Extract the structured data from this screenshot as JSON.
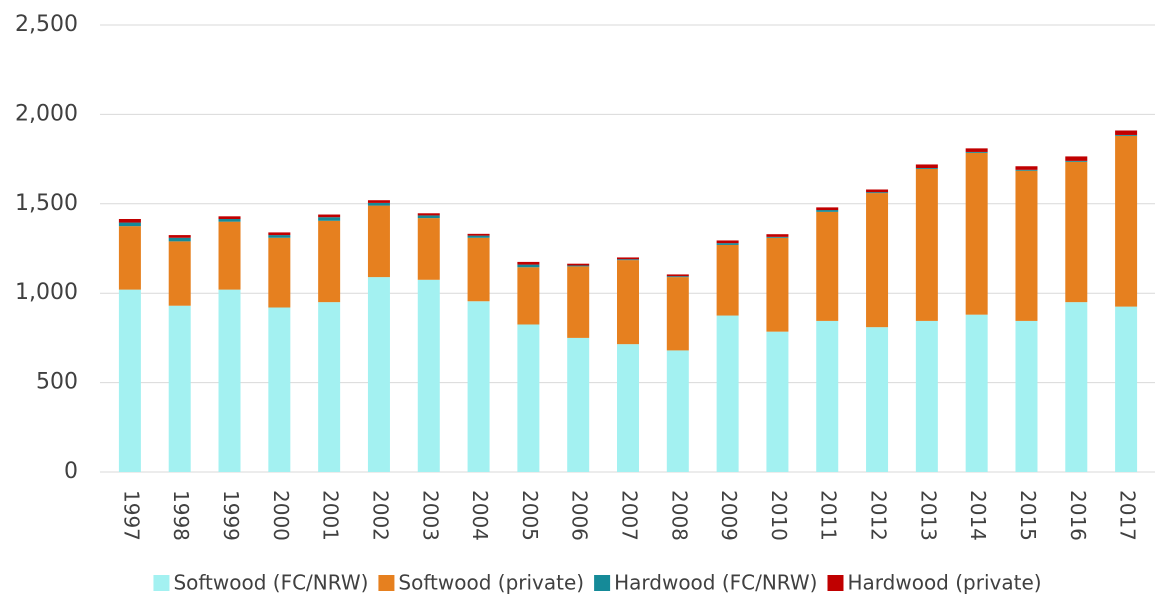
{
  "chart_data": {
    "type": "stacked-bar",
    "categories": [
      "1997",
      "1998",
      "1999",
      "2000",
      "2001",
      "2002",
      "2003",
      "2004",
      "2005",
      "2006",
      "2007",
      "2008",
      "2009",
      "2010",
      "2011",
      "2012",
      "2013",
      "2014",
      "2015",
      "2016",
      "2017"
    ],
    "series": [
      {
        "name": "Softwood (FC/NRW)",
        "color": "#a3f1f1",
        "values": [
          1020,
          930,
          1020,
          920,
          950,
          1090,
          1075,
          955,
          825,
          750,
          715,
          680,
          875,
          785,
          845,
          810,
          845,
          880,
          845,
          950,
          925
        ]
      },
      {
        "name": "Softwood (private)",
        "color": "#e6801f",
        "values": [
          355,
          360,
          380,
          390,
          455,
          400,
          345,
          355,
          320,
          400,
          470,
          410,
          395,
          525,
          610,
          750,
          850,
          905,
          840,
          785,
          955
        ]
      },
      {
        "name": "Hardwood (FC/NRW)",
        "color": "#158a98",
        "values": [
          20,
          20,
          15,
          15,
          20,
          15,
          15,
          12,
          15,
          5,
          5,
          5,
          10,
          5,
          10,
          5,
          5,
          5,
          5,
          5,
          5
        ]
      },
      {
        "name": "Hardwood (private)",
        "color": "#c00000",
        "values": [
          20,
          15,
          15,
          15,
          15,
          15,
          12,
          10,
          15,
          10,
          10,
          10,
          15,
          15,
          15,
          15,
          20,
          20,
          20,
          25,
          25
        ]
      }
    ],
    "ylim": [
      0,
      2500
    ],
    "yticks": [
      0,
      500,
      {
        "value": 1000,
        "label": "1,000"
      },
      {
        "value": 1500,
        "label": "1,500"
      },
      {
        "value": 2000,
        "label": "2,000"
      },
      {
        "value": 2500,
        "label": "2,500"
      }
    ],
    "grid": true,
    "legend": "bottom"
  }
}
